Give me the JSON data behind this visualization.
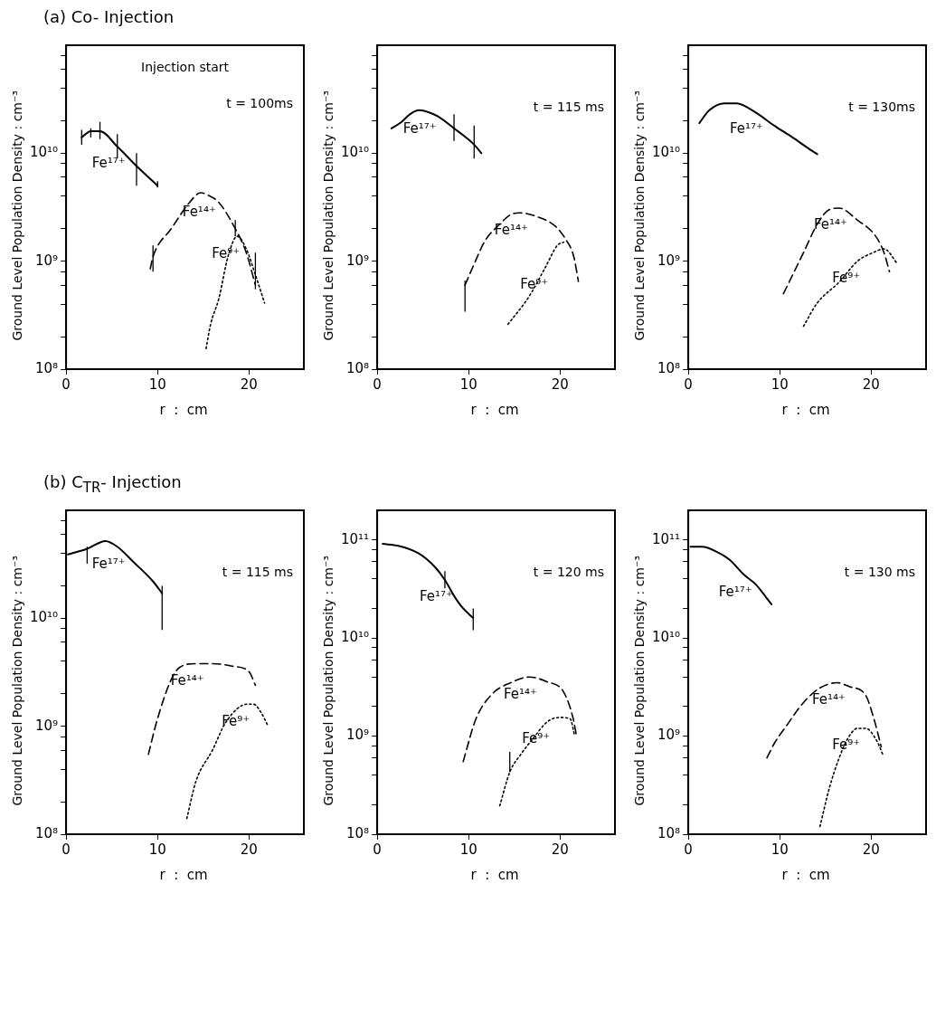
{
  "chart_data": [
    {
      "type": "line",
      "title": "(a)  Co- Injection",
      "xlabel": "r  :  cm",
      "ylabel": "Ground Level Population Density : cm⁻³",
      "annotations": [
        "Injection start",
        "t = 100ms"
      ],
      "log": "y",
      "marker": "none",
      "xlim": [
        0,
        26
      ],
      "xticks": [
        0,
        10,
        20
      ],
      "ylim": [
        100000000.0,
        100000000000.0
      ],
      "yticks": [
        {
          "value": 100000000.0,
          "label": "10⁸"
        },
        {
          "value": 200000000.0,
          "label": null
        },
        {
          "value": 400000000.0,
          "label": null
        },
        {
          "value": 600000000.0,
          "label": null
        },
        {
          "value": 800000000.0,
          "label": null
        },
        {
          "value": 1000000000.0,
          "label": "10⁹"
        },
        {
          "value": 2000000000.0,
          "label": null
        },
        {
          "value": 4000000000.0,
          "label": null
        },
        {
          "value": 6000000000.0,
          "label": null
        },
        {
          "value": 8000000000.0,
          "label": null
        },
        {
          "value": 10000000000.0,
          "label": "10¹⁰"
        },
        {
          "value": 20000000000.0,
          "label": null
        },
        {
          "value": 40000000000.0,
          "label": null
        },
        {
          "value": 60000000000.0,
          "label": null
        },
        {
          "value": 80000000000.0,
          "label": null
        }
      ],
      "series": [
        {
          "name": "Fe¹⁷⁺",
          "color": "#000000",
          "line_style": "solid",
          "x": [
            1.7,
            2.7,
            3.7,
            5.6,
            7.7,
            10
          ],
          "values": [
            14000000000.0,
            16000000000.0,
            16000000000.0,
            11500000000.0,
            7600000000.0,
            5000000000.0
          ],
          "errors": [
            [
              12000000000.0,
              16500000000.0
            ],
            [
              14000000000.0,
              17000000000.0
            ],
            [
              13500000000.0,
              19500000000.0
            ],
            [
              9000000000.0,
              15000000000.0
            ],
            [
              5000000000.0,
              10000000000.0
            ],
            [
              4800000000.0,
              5500000000.0
            ]
          ]
        },
        {
          "name": "Fe¹⁴⁺",
          "color": "#000000",
          "line_style": "dashed",
          "x": [
            9.2,
            9.5,
            11.5,
            13.5,
            14.7,
            15.5,
            16.7,
            18.5,
            19.7,
            20.7
          ],
          "values": [
            850000000.0,
            1100000000.0,
            2000000000.0,
            3500000000.0,
            4300000000.0,
            4100000000.0,
            3500000000.0,
            2000000000.0,
            1200000000.0,
            600000000.0
          ],
          "errors": [
            null,
            [
              800000000.0,
              1400000000.0
            ],
            null,
            null,
            null,
            null,
            null,
            [
              1700000000.0,
              2400000000.0
            ],
            null,
            [
              550000000.0,
              1200000000.0
            ]
          ]
        },
        {
          "name": "Fe⁹⁺",
          "color": "#000000",
          "line_style": "dotted",
          "x": [
            15.3,
            15.8,
            16.7,
            17.7,
            18.7,
            19.7,
            20.7,
            21.7
          ],
          "values": [
            155000000.0,
            260000000.0,
            450000000.0,
            1100000000.0,
            1700000000.0,
            1300000000.0,
            750000000.0,
            410000000.0
          ]
        }
      ]
    },
    {
      "type": "line",
      "xlabel": "r  :  cm",
      "ylabel": "Ground Level Population Density : cm⁻³",
      "annotations": [
        "t = 115 ms"
      ],
      "log": "y",
      "marker": "none",
      "xlim": [
        0,
        26
      ],
      "xticks": [
        0,
        10,
        20
      ],
      "ylim": [
        100000000.0,
        100000000000.0
      ],
      "yticks": [
        {
          "value": 100000000.0,
          "label": "10⁸"
        },
        {
          "value": 200000000.0,
          "label": null
        },
        {
          "value": 400000000.0,
          "label": null
        },
        {
          "value": 600000000.0,
          "label": null
        },
        {
          "value": 800000000.0,
          "label": null
        },
        {
          "value": 1000000000.0,
          "label": "10⁹"
        },
        {
          "value": 2000000000.0,
          "label": null
        },
        {
          "value": 4000000000.0,
          "label": null
        },
        {
          "value": 6000000000.0,
          "label": null
        },
        {
          "value": 8000000000.0,
          "label": null
        },
        {
          "value": 10000000000.0,
          "label": "10¹⁰"
        },
        {
          "value": 20000000000.0,
          "label": null
        },
        {
          "value": 40000000000.0,
          "label": null
        },
        {
          "value": 60000000000.0,
          "label": null
        },
        {
          "value": 80000000000.0,
          "label": null
        }
      ],
      "series": [
        {
          "name": "Fe¹⁷⁺",
          "color": "#000000",
          "line_style": "solid",
          "x": [
            1.55,
            2.5,
            3.6,
            4.6,
            5.6,
            6.6,
            8.4,
            10.6,
            11.4
          ],
          "values": [
            17000000000.0,
            19000000000.0,
            23000000000.0,
            25000000000.0,
            24000000000.0,
            22000000000.0,
            17000000000.0,
            12000000000.0,
            10000000000.0
          ],
          "errors": [
            null,
            null,
            null,
            null,
            null,
            null,
            [
              13000000000.0,
              23000000000.0
            ],
            [
              8900000000.0,
              18000000000.0
            ],
            null
          ]
        },
        {
          "name": "Fe¹⁴⁺",
          "color": "#000000",
          "line_style": "dashed",
          "x": [
            9.6,
            10.6,
            11.8,
            13.4,
            14.6,
            15.6,
            17.4,
            19.5,
            20.5,
            21.5,
            22.0
          ],
          "values": [
            600000000.0,
            940000000.0,
            1550000000.0,
            2200000000.0,
            2700000000.0,
            2800000000.0,
            2600000000.0,
            2100000000.0,
            1650000000.0,
            1100000000.0,
            650000000.0
          ],
          "errors": [
            [
              340000000.0,
              660000000.0
            ],
            null,
            null,
            null,
            null,
            null,
            null,
            null,
            null,
            null,
            null
          ]
        },
        {
          "name": "Fe⁹⁺",
          "color": "#000000",
          "line_style": "dotted",
          "x": [
            14.3,
            16.6,
            18.4,
            19.7,
            20.4
          ],
          "values": [
            260000000.0,
            470000000.0,
            880000000.0,
            1400000000.0,
            1500000000.0
          ]
        }
      ]
    },
    {
      "type": "line",
      "xlabel": "r  :  cm",
      "ylabel": "Ground Level Population Density : cm⁻³",
      "annotations": [
        "t = 130ms"
      ],
      "log": "y",
      "marker": "none",
      "xlim": [
        0,
        26
      ],
      "xticks": [
        0,
        10,
        20
      ],
      "ylim": [
        100000000.0,
        100000000000.0
      ],
      "yticks": [
        {
          "value": 100000000.0,
          "label": "10⁸"
        },
        {
          "value": 200000000.0,
          "label": null
        },
        {
          "value": 400000000.0,
          "label": null
        },
        {
          "value": 600000000.0,
          "label": null
        },
        {
          "value": 800000000.0,
          "label": null
        },
        {
          "value": 1000000000.0,
          "label": "10⁹"
        },
        {
          "value": 2000000000.0,
          "label": null
        },
        {
          "value": 4000000000.0,
          "label": null
        },
        {
          "value": 6000000000.0,
          "label": null
        },
        {
          "value": 8000000000.0,
          "label": null
        },
        {
          "value": 10000000000.0,
          "label": "10¹⁰"
        },
        {
          "value": 20000000000.0,
          "label": null
        },
        {
          "value": 40000000000.0,
          "label": null
        },
        {
          "value": 60000000000.0,
          "label": null
        },
        {
          "value": 80000000000.0,
          "label": null
        }
      ],
      "series": [
        {
          "name": "Fe¹⁷⁺",
          "color": "#000000",
          "line_style": "solid",
          "x": [
            1.2,
            2.3,
            3.95,
            5.3,
            7.3,
            9.4,
            11.4,
            13.4,
            14.1
          ],
          "values": [
            19000000000.0,
            25000000000.0,
            29000000000.0,
            29000000000.0,
            24000000000.0,
            18000000000.0,
            14000000000.0,
            10700000000.0,
            9800000000.0
          ]
        },
        {
          "name": "Fe¹⁴⁺",
          "color": "#000000",
          "line_style": "dashed",
          "x": [
            10.4,
            12.6,
            14.1,
            15.4,
            16.5,
            18.5,
            20.5,
            21.4,
            22.0
          ],
          "values": [
            500000000.0,
            1200000000.0,
            2200000000.0,
            3000000000.0,
            3100000000.0,
            2400000000.0,
            1700000000.0,
            1200000000.0,
            800000000.0
          ]
        },
        {
          "name": "Fe⁹⁺",
          "color": "#000000",
          "line_style": "dotted",
          "x": [
            12.6,
            14.1,
            16.5,
            18.5,
            20.2,
            21.4,
            22.9
          ],
          "values": [
            250000000.0,
            410000000.0,
            640000000.0,
            1000000000.0,
            1200000000.0,
            1300000000.0,
            940000000.0
          ]
        }
      ]
    },
    {
      "type": "line",
      "title": "(b)  C$_{TR}$- Injection",
      "xlabel": "r  :  cm",
      "ylabel": "Ground Level Population Density : cm⁻³",
      "annotations": [
        "t = 115 ms"
      ],
      "log": "y",
      "marker": "none",
      "xlim": [
        0,
        26
      ],
      "xticks": [
        0,
        10,
        20
      ],
      "ylim": [
        100000000.0,
        100000000000.0
      ],
      "yticks": [
        {
          "value": 100000000.0,
          "label": "10⁸"
        },
        {
          "value": 200000000.0,
          "label": null
        },
        {
          "value": 400000000.0,
          "label": null
        },
        {
          "value": 600000000.0,
          "label": null
        },
        {
          "value": 800000000.0,
          "label": null
        },
        {
          "value": 1000000000.0,
          "label": "10⁹"
        },
        {
          "value": 2000000000.0,
          "label": null
        },
        {
          "value": 4000000000.0,
          "label": null
        },
        {
          "value": 6000000000.0,
          "label": null
        },
        {
          "value": 8000000000.0,
          "label": null
        },
        {
          "value": 10000000000.0,
          "label": "10¹⁰"
        },
        {
          "value": 20000000000.0,
          "label": null
        },
        {
          "value": 40000000000.0,
          "label": null
        },
        {
          "value": 60000000000.0,
          "label": null
        },
        {
          "value": 80000000000.0,
          "label": null
        }
      ],
      "series": [
        {
          "name": "Fe¹⁷⁺",
          "color": "#000000",
          "line_style": "solid",
          "x": [
            0.2,
            2.3,
            4.3,
            5.6,
            7.4,
            9.5,
            10.5
          ],
          "values": [
            39000000000.0,
            44000000000.0,
            52000000000.0,
            46000000000.0,
            33000000000.0,
            22000000000.0,
            17000000000.0
          ],
          "errors": [
            null,
            [
              32000000000.0,
              46000000000.0
            ],
            null,
            null,
            null,
            null,
            [
              7800000000.0,
              20000000000.0
            ]
          ]
        },
        {
          "name": "Fe¹⁴⁺",
          "color": "#000000",
          "line_style": "dashed",
          "x": [
            9.0,
            9.9,
            11.4,
            12.4,
            14.2,
            16.0,
            18.2,
            20.0,
            20.7
          ],
          "values": [
            550000000.0,
            1100000000.0,
            2600000000.0,
            3500000000.0,
            3800000000.0,
            3800000000.0,
            3600000000.0,
            3200000000.0,
            2400000000.0
          ]
        },
        {
          "name": "Fe⁹⁺",
          "color": "#000000",
          "line_style": "dotted",
          "x": [
            13.2,
            14.2,
            16.0,
            17.5,
            19.8,
            20.5,
            21.3,
            22.1
          ],
          "values": [
            140000000.0,
            310000000.0,
            600000000.0,
            1100000000.0,
            1600000000.0,
            1600000000.0,
            1350000000.0,
            1000000000.0
          ]
        }
      ]
    },
    {
      "type": "line",
      "xlabel": "r  :  cm",
      "ylabel": "Ground Level Population Density : cm⁻³",
      "annotations": [
        "t = 120 ms"
      ],
      "log": "y",
      "marker": "none",
      "xlim": [
        0,
        26
      ],
      "xticks": [
        0,
        10,
        20
      ],
      "ylim": [
        100000000.0,
        200000000000.0
      ],
      "yticks": [
        {
          "value": 100000000.0,
          "label": "10⁸"
        },
        {
          "value": 200000000.0,
          "label": null
        },
        {
          "value": 400000000.0,
          "label": null
        },
        {
          "value": 600000000.0,
          "label": null
        },
        {
          "value": 800000000.0,
          "label": null
        },
        {
          "value": 1000000000.0,
          "label": "10⁹"
        },
        {
          "value": 2000000000.0,
          "label": null
        },
        {
          "value": 4000000000.0,
          "label": null
        },
        {
          "value": 6000000000.0,
          "label": null
        },
        {
          "value": 8000000000.0,
          "label": null
        },
        {
          "value": 10000000000.0,
          "label": "10¹⁰"
        },
        {
          "value": 20000000000.0,
          "label": null
        },
        {
          "value": 40000000000.0,
          "label": null
        },
        {
          "value": 60000000000.0,
          "label": null
        },
        {
          "value": 80000000000.0,
          "label": null
        },
        {
          "value": 100000000000.0,
          "label": "10¹¹"
        }
      ],
      "series": [
        {
          "name": "Fe¹⁷⁺",
          "color": "#000000",
          "line_style": "solid",
          "x": [
            0.6,
            2.3,
            4.5,
            6.3,
            7.4,
            8.5,
            9.4,
            10.5
          ],
          "values": [
            91000000000.0,
            87000000000.0,
            73000000000.0,
            53000000000.0,
            39000000000.0,
            26000000000.0,
            20000000000.0,
            16000000000.0
          ],
          "errors": [
            null,
            null,
            null,
            null,
            [
              32000000000.0,
              48000000000.0
            ],
            null,
            null,
            [
              12000000000.0,
              20000000000.0
            ]
          ]
        },
        {
          "name": "Fe¹⁴⁺",
          "color": "#000000",
          "line_style": "dashed",
          "x": [
            9.4,
            10.8,
            12.6,
            14.6,
            16.6,
            18.5,
            20.4,
            21.4,
            21.8
          ],
          "values": [
            550000000.0,
            1500000000.0,
            2700000000.0,
            3500000000.0,
            4000000000.0,
            3600000000.0,
            2800000000.0,
            1550000000.0,
            1000000000.0
          ]
        },
        {
          "name": "Fe⁹⁺",
          "color": "#000000",
          "line_style": "dotted",
          "x": [
            13.4,
            14.5,
            15.7,
            17.1,
            18.6,
            20.0,
            21.1,
            21.6
          ],
          "values": [
            195000000.0,
            430000000.0,
            650000000.0,
            960000000.0,
            1400000000.0,
            1550000000.0,
            1500000000.0,
            1000000000.0
          ],
          "errors": [
            null,
            [
              430000000.0,
              690000000.0
            ],
            null,
            null,
            null,
            null,
            null,
            null
          ]
        }
      ]
    },
    {
      "type": "line",
      "xlabel": "r  :  cm",
      "ylabel": "Ground Level Population Density : cm⁻³",
      "annotations": [
        "t = 130 ms"
      ],
      "log": "y",
      "marker": "none",
      "xlim": [
        0,
        26
      ],
      "xticks": [
        0,
        10,
        20
      ],
      "ylim": [
        100000000.0,
        200000000000.0
      ],
      "yticks": [
        {
          "value": 100000000.0,
          "label": "10⁸"
        },
        {
          "value": 200000000.0,
          "label": null
        },
        {
          "value": 400000000.0,
          "label": null
        },
        {
          "value": 600000000.0,
          "label": null
        },
        {
          "value": 800000000.0,
          "label": null
        },
        {
          "value": 1000000000.0,
          "label": "10⁹"
        },
        {
          "value": 2000000000.0,
          "label": null
        },
        {
          "value": 4000000000.0,
          "label": null
        },
        {
          "value": 6000000000.0,
          "label": null
        },
        {
          "value": 8000000000.0,
          "label": null
        },
        {
          "value": 10000000000.0,
          "label": "10¹⁰"
        },
        {
          "value": 20000000000.0,
          "label": null
        },
        {
          "value": 40000000000.0,
          "label": null
        },
        {
          "value": 60000000000.0,
          "label": null
        },
        {
          "value": 80000000000.0,
          "label": null
        },
        {
          "value": 100000000000.0,
          "label": "10¹¹"
        }
      ],
      "series": [
        {
          "name": "Fe¹⁷⁺",
          "color": "#000000",
          "line_style": "solid",
          "x": [
            0.25,
            1.5,
            3.3,
            4.5,
            6.1,
            7.4,
            8.5,
            9.1
          ],
          "values": [
            85000000000.0,
            85000000000.0,
            74000000000.0,
            63000000000.0,
            44000000000.0,
            35000000000.0,
            26000000000.0,
            22000000000.0
          ]
        },
        {
          "name": "Fe¹⁴⁺",
          "color": "#000000",
          "line_style": "dashed",
          "x": [
            8.6,
            9.4,
            10.8,
            12.6,
            14.4,
            16.3,
            17.6,
            19.4,
            20.3,
            21.1
          ],
          "values": [
            600000000.0,
            840000000.0,
            1300000000.0,
            2200000000.0,
            3100000000.0,
            3500000000.0,
            3200000000.0,
            2600000000.0,
            1500000000.0,
            780000000.0
          ]
        },
        {
          "name": "Fe⁹⁺",
          "color": "#000000",
          "line_style": "dotted",
          "x": [
            14.4,
            15.4,
            16.5,
            17.4,
            18.5,
            19.4,
            20.6,
            21.3
          ],
          "values": [
            120000000.0,
            290000000.0,
            600000000.0,
            930000000.0,
            1200000000.0,
            1200000000.0,
            900000000.0,
            640000000.0
          ]
        }
      ]
    }
  ]
}
